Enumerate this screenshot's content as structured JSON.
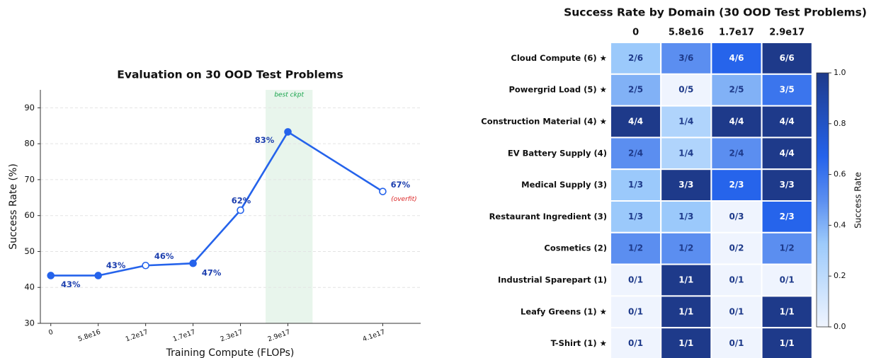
{
  "chart_data": [
    {
      "type": "line",
      "title": "Evaluation on 30 OOD Test Problems",
      "x_label": "Training Compute (FLOPs)",
      "y_label": "Success Rate (%)",
      "x": [
        0,
        1,
        2,
        3,
        4,
        5,
        7
      ],
      "xticks": [
        {
          "value": 0,
          "label": "0"
        },
        {
          "value": 1,
          "label": "5.8e16"
        },
        {
          "value": 2,
          "label": "1.2e17"
        },
        {
          "value": 3,
          "label": "1.7e17"
        },
        {
          "value": 4,
          "label": "2.3e17"
        },
        {
          "value": 5,
          "label": "2.9e17"
        },
        {
          "value": 7,
          "label": "4.1e17"
        }
      ],
      "xlim": [
        -0.22,
        7.8
      ],
      "series": [
        {
          "name": "Success Rate",
          "color": "#2563eb",
          "values": [
            43.3,
            43.3,
            46.1,
            46.7,
            61.5,
            83.3,
            66.7
          ],
          "value_labels": [
            "43%",
            "43%",
            "46%",
            "47%",
            "62%",
            "83%",
            "67%"
          ],
          "marker_fill": [
            "#2563eb",
            "#2563eb",
            "#ffffff",
            "#2563eb",
            "#ffffff",
            "#2563eb",
            "#ffffff"
          ]
        }
      ],
      "ylim": [
        30,
        95
      ],
      "yticks": [
        30,
        40,
        50,
        60,
        70,
        80,
        90
      ],
      "grid": true,
      "annotations": [
        {
          "text": "best ckpt",
          "x0": 4.53,
          "x1": 5.52,
          "color": "#16a34a",
          "fill": "#e8f5ec"
        },
        {
          "text": "(overfit)",
          "color": "#dc2626"
        }
      ]
    },
    {
      "type": "heatmap",
      "title": "Success Rate by Domain (30 OOD Test Problems)",
      "x_categories": [
        "0",
        "5.8e16",
        "1.7e17",
        "2.9e17"
      ],
      "y_categories": [
        "Cloud Compute (6) ★",
        "Powergrid Load (5) ★",
        "Construction Material (4) ★",
        "EV Battery Supply (4)",
        "Medical Supply (3)",
        "Restaurant Ingredient (3)",
        "Cosmetics (2)",
        "Industrial Sparepart (1)",
        "Leafy Greens (1) ★",
        "T-Shirt (1) ★"
      ],
      "values": [
        [
          0.333,
          0.5,
          0.667,
          1
        ],
        [
          0.4,
          0,
          0.4,
          0.6
        ],
        [
          1,
          0.25,
          1,
          1
        ],
        [
          0.5,
          0.25,
          0.5,
          1
        ],
        [
          0.333,
          1,
          0.667,
          1
        ],
        [
          0.333,
          0.333,
          0,
          0.667
        ],
        [
          0.5,
          0.5,
          0,
          0.5
        ],
        [
          0,
          1,
          0,
          0
        ],
        [
          0,
          1,
          0,
          1
        ],
        [
          0,
          1,
          0,
          1
        ]
      ],
      "value_labels": [
        [
          "2/6",
          "3/6",
          "4/6",
          "6/6"
        ],
        [
          "2/5",
          "0/5",
          "2/5",
          "3/5"
        ],
        [
          "4/4",
          "1/4",
          "4/4",
          "4/4"
        ],
        [
          "2/4",
          "1/4",
          "2/4",
          "4/4"
        ],
        [
          "1/3",
          "3/3",
          "2/3",
          "3/3"
        ],
        [
          "1/3",
          "1/3",
          "0/3",
          "2/3"
        ],
        [
          "1/2",
          "1/2",
          "0/2",
          "1/2"
        ],
        [
          "0/1",
          "1/1",
          "0/1",
          "0/1"
        ],
        [
          "0/1",
          "1/1",
          "0/1",
          "1/1"
        ],
        [
          "0/1",
          "1/1",
          "0/1",
          "1/1"
        ]
      ],
      "colorscale": [
        [
          0,
          "#eff4fe"
        ],
        [
          0.33,
          "#9ccafb"
        ],
        [
          0.5,
          "#5b8ef0"
        ],
        [
          0.67,
          "#2563eb"
        ],
        [
          1,
          "#1e3a8a"
        ]
      ],
      "colorbar_label": "Success Rate",
      "clim": [
        0,
        1
      ],
      "cticks": [
        {
          "value": 0,
          "label": "0.0"
        },
        {
          "value": 0.2,
          "label": "0.2"
        },
        {
          "value": 0.4,
          "label": "0.4"
        },
        {
          "value": 0.6,
          "label": "0.6"
        },
        {
          "value": 0.8,
          "label": "0.8"
        },
        {
          "value": 1,
          "label": "1.0"
        }
      ]
    }
  ]
}
